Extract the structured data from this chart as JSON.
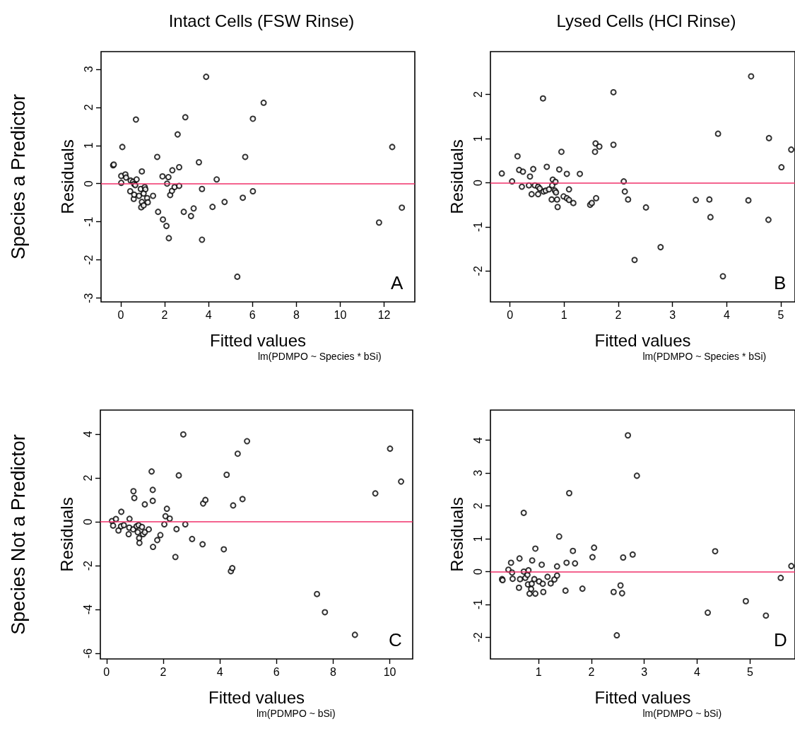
{
  "chart_data": [
    {
      "type": "scatter",
      "title": "Intact Cells (FSW Rinse)",
      "xlabel": "Fitted values",
      "ylabel": "Residuals",
      "annotations": [
        "lm(PDMPO ~ Species * bSi)",
        "A",
        "Species a Predictor"
      ],
      "marker": "circle",
      "xlim": [
        -0.9,
        13.4
      ],
      "ylim": [
        -3.1,
        3.46
      ],
      "xticks": [
        0,
        2,
        4,
        6,
        8,
        10,
        12
      ],
      "yticks": [
        -3,
        -2,
        -1,
        0,
        1,
        2,
        3
      ],
      "ref_lines": [
        {
          "axis": "y",
          "value": 0,
          "color": "#f0306a"
        }
      ],
      "series": [
        {
          "color": "#000000",
          "x": [
            -0.35,
            -0.32,
            0.07,
            0.02,
            0.02,
            0.21,
            0.24,
            0.45,
            0.56,
            0.61,
            0.72,
            0.66,
            0.69,
            0.43,
            0.59,
            0.61,
            0.96,
            0.83,
            0.91,
            0.96,
            0.93,
            1.04,
            1.09,
            1.12,
            1.04,
            1.2,
            1.23,
            1.47,
            1.66,
            1.7,
            1.9,
            1.92,
            2.08,
            2.17,
            2.11,
            2.19,
            2.25,
            2.35,
            2.33,
            2.45,
            2.59,
            2.66,
            2.66,
            2.87,
            2.94,
            3.2,
            3.32,
            3.56,
            3.7,
            3.7,
            3.89,
            4.18,
            4.37,
            4.73,
            5.31,
            5.56,
            5.67,
            6.02,
            6.02,
            6.51,
            11.77,
            12.37,
            12.81
          ],
          "values": [
            0.48,
            0.5,
            0.96,
            0.2,
            0.02,
            0.24,
            0.16,
            0.08,
            0.05,
            -0.01,
            0.11,
            -0.04,
            1.68,
            -0.2,
            -0.4,
            -0.29,
            0.32,
            -0.32,
            -0.14,
            -0.48,
            -0.62,
            -0.57,
            -0.09,
            -0.15,
            -0.26,
            -0.38,
            -0.49,
            -0.32,
            0.7,
            -0.74,
            0.19,
            -0.94,
            -1.11,
            0.17,
            0.0,
            -1.43,
            -0.3,
            0.35,
            -0.19,
            -0.09,
            1.29,
            0.43,
            -0.06,
            -0.74,
            1.74,
            -0.85,
            -0.65,
            0.56,
            -0.14,
            -1.47,
            2.8,
            -0.61,
            0.11,
            -0.48,
            -2.44,
            -0.37,
            0.7,
            1.7,
            -0.2,
            2.12,
            -1.02,
            0.96,
            -0.63
          ]
        }
      ]
    },
    {
      "type": "scatter",
      "title": "Lysed Cells (HCl Rinse)",
      "xlabel": "Fitted values",
      "ylabel": "Residuals",
      "annotations": [
        "lm(PDMPO ~ Species * bSi)",
        "B"
      ],
      "marker": "circle",
      "xlim": [
        -0.36,
        5.26
      ],
      "ylim": [
        -2.7,
        2.97
      ],
      "xticks": [
        0,
        1,
        2,
        3,
        4,
        5
      ],
      "yticks": [
        -2,
        -1,
        0,
        1,
        2
      ],
      "ref_lines": [
        {
          "axis": "y",
          "value": 0,
          "color": "#f0306a"
        }
      ],
      "series": [
        {
          "color": "#000000",
          "x": [
            -0.15,
            0.04,
            0.14,
            0.17,
            0.24,
            0.22,
            0.37,
            0.43,
            0.35,
            0.4,
            0.46,
            0.52,
            0.52,
            0.55,
            0.61,
            0.62,
            0.66,
            0.68,
            0.72,
            0.77,
            0.79,
            0.78,
            0.84,
            0.83,
            0.85,
            0.87,
            0.88,
            0.91,
            0.95,
            0.99,
            1.05,
            1.05,
            1.09,
            1.09,
            1.17,
            1.29,
            1.48,
            1.51,
            1.57,
            1.58,
            1.59,
            1.65,
            1.91,
            1.91,
            2.1,
            2.12,
            2.18,
            2.3,
            2.51,
            2.78,
            3.43,
            3.68,
            3.7,
            3.84,
            3.93,
            4.4,
            4.45,
            4.77,
            4.78,
            5.01,
            5.19
          ],
          "values": [
            0.21,
            0.03,
            0.6,
            0.29,
            0.25,
            -0.09,
            0.14,
            0.31,
            -0.06,
            -0.26,
            -0.06,
            -0.26,
            -0.09,
            -0.13,
            1.91,
            -0.2,
            -0.18,
            0.36,
            -0.15,
            -0.38,
            0.07,
            -0.06,
            0.02,
            -0.18,
            -0.22,
            -0.38,
            -0.55,
            0.3,
            0.7,
            -0.31,
            0.2,
            -0.35,
            -0.15,
            -0.39,
            -0.46,
            0.2,
            -0.5,
            -0.46,
            0.7,
            0.89,
            -0.35,
            0.82,
            0.86,
            2.05,
            0.03,
            -0.2,
            -0.38,
            -1.75,
            -0.56,
            -1.46,
            -0.39,
            -0.38,
            -0.78,
            1.11,
            -2.12,
            -0.4,
            2.41,
            -0.84,
            1.01,
            0.35,
            0.75
          ]
        }
      ]
    },
    {
      "type": "scatter",
      "xlabel": "Fitted values",
      "ylabel": "Residuals",
      "annotations": [
        "lm(PDMPO ~ bSi)",
        "C",
        "Species Not a Predictor"
      ],
      "marker": "circle",
      "xlim": [
        -0.22,
        10.81
      ],
      "ylim": [
        -6.25,
        5.1
      ],
      "xticks": [
        0,
        2,
        4,
        6,
        8,
        10
      ],
      "yticks": [
        -6,
        -4,
        -2,
        0,
        2,
        4
      ],
      "ref_lines": [
        {
          "axis": "y",
          "value": 0,
          "color": "#f0306a"
        }
      ],
      "series": [
        {
          "color": "#000000",
          "x": [
            0.19,
            0.23,
            0.33,
            0.42,
            0.52,
            0.51,
            0.61,
            0.81,
            0.78,
            0.8,
            0.95,
            0.98,
            0.94,
            1.06,
            1.1,
            1.13,
            1.15,
            1.16,
            1.25,
            1.29,
            1.35,
            1.35,
            1.49,
            1.59,
            1.63,
            1.63,
            1.64,
            1.79,
            1.9,
            2.04,
            2.13,
            2.08,
            2.23,
            2.43,
            2.47,
            2.55,
            2.71,
            2.78,
            3.02,
            3.39,
            3.41,
            3.49,
            4.14,
            4.24,
            4.39,
            4.44,
            4.47,
            4.63,
            4.8,
            4.96,
            7.43,
            7.71,
            8.77,
            9.49,
            10.01,
            10.4
          ],
          "values": [
            0.04,
            -0.17,
            0.13,
            -0.39,
            0.46,
            -0.2,
            -0.15,
            0.14,
            -0.56,
            -0.26,
            1.4,
            1.09,
            -0.34,
            -0.2,
            -0.47,
            -0.15,
            -0.74,
            -0.96,
            -0.23,
            -0.56,
            0.8,
            -0.47,
            -0.34,
            2.3,
            1.46,
            0.96,
            -1.14,
            -0.83,
            -0.6,
            -0.11,
            0.6,
            0.26,
            0.15,
            -1.6,
            -0.33,
            2.12,
            3.99,
            -0.11,
            -0.78,
            -1.02,
            0.84,
            1.0,
            -1.25,
            2.15,
            -2.25,
            -2.11,
            0.75,
            3.11,
            1.04,
            3.68,
            -3.29,
            -4.12,
            -5.15,
            1.3,
            3.34,
            1.84
          ]
        }
      ]
    },
    {
      "type": "scatter",
      "xlabel": "Fitted values",
      "ylabel": "Residuals",
      "annotations": [
        "lm(PDMPO ~ bSi)",
        "D"
      ],
      "marker": "circle",
      "xlim": [
        0.09,
        5.85
      ],
      "ylim": [
        -2.66,
        4.92
      ],
      "xticks": [
        1,
        2,
        3,
        4,
        5
      ],
      "yticks": [
        -2,
        -1,
        0,
        1,
        2,
        3,
        4
      ],
      "ref_lines": [
        {
          "axis": "y",
          "value": 0,
          "color": "#f0306a"
        }
      ],
      "series": [
        {
          "color": "#000000",
          "x": [
            0.31,
            0.32,
            0.43,
            0.48,
            0.5,
            0.51,
            0.63,
            0.64,
            0.65,
            0.72,
            0.72,
            0.75,
            0.79,
            0.81,
            0.8,
            0.83,
            0.86,
            0.88,
            0.87,
            0.94,
            0.92,
            0.94,
            1.01,
            1.06,
            1.08,
            1.09,
            1.17,
            1.23,
            1.3,
            1.35,
            1.35,
            1.39,
            1.51,
            1.53,
            1.58,
            1.65,
            1.69,
            1.83,
            2.02,
            2.05,
            2.42,
            2.48,
            2.55,
            2.58,
            2.6,
            2.69,
            2.78,
            2.86,
            4.2,
            4.34,
            4.92,
            5.3,
            5.58,
            5.78
          ],
          "values": [
            -0.23,
            -0.26,
            0.06,
            0.27,
            -0.03,
            -0.22,
            -0.49,
            0.4,
            -0.23,
            1.79,
            0.0,
            -0.19,
            -0.1,
            0.04,
            -0.39,
            -0.67,
            -0.53,
            0.34,
            -0.37,
            0.7,
            -0.23,
            -0.67,
            -0.3,
            0.21,
            -0.37,
            -0.62,
            -0.16,
            -0.36,
            -0.24,
            0.16,
            -0.12,
            1.07,
            -0.58,
            0.27,
            2.39,
            0.63,
            0.25,
            -0.52,
            0.44,
            0.73,
            -0.62,
            -1.94,
            -0.42,
            -0.66,
            0.43,
            4.15,
            0.52,
            2.92,
            -1.25,
            0.62,
            -0.9,
            -1.34,
            -0.19,
            0.17
          ]
        }
      ]
    }
  ]
}
